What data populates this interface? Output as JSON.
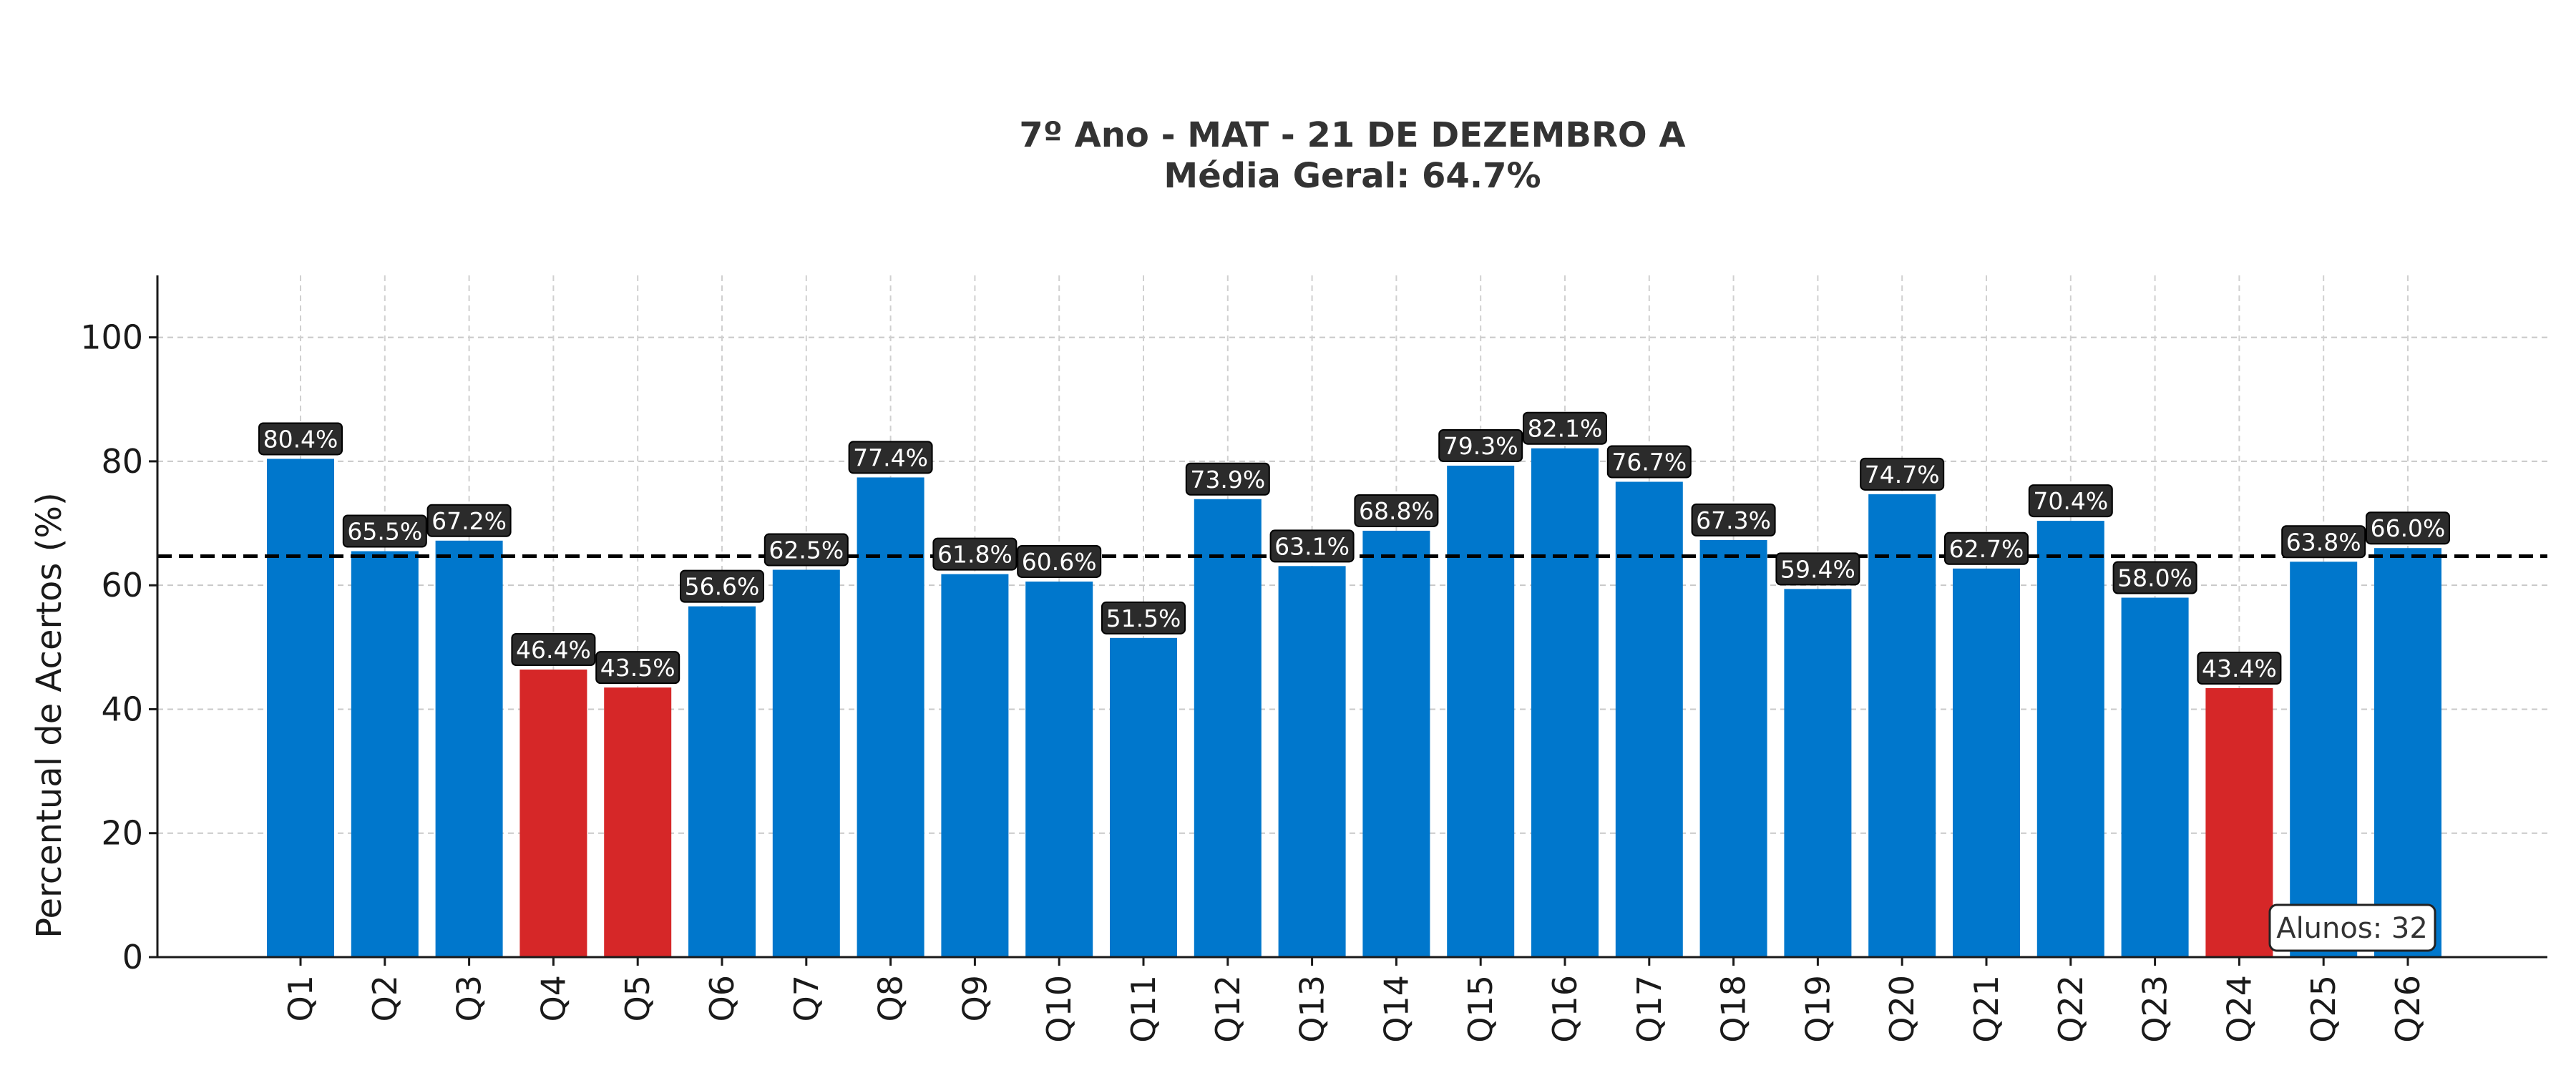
{
  "chart_data": {
    "type": "bar",
    "title": "7º Ano - MAT - 21 DE DEZEMBRO A",
    "subtitle": "Média Geral: 64.7%",
    "xlabel": "",
    "ylabel": "Percentual de Acertos (%)",
    "ylim": [
      0,
      110
    ],
    "yticks": [
      0,
      20,
      40,
      60,
      80,
      100
    ],
    "grid": true,
    "categories": [
      "Q1",
      "Q2",
      "Q3",
      "Q4",
      "Q5",
      "Q6",
      "Q7",
      "Q8",
      "Q9",
      "Q10",
      "Q11",
      "Q12",
      "Q13",
      "Q14",
      "Q15",
      "Q16",
      "Q17",
      "Q18",
      "Q19",
      "Q20",
      "Q21",
      "Q22",
      "Q23",
      "Q24",
      "Q25",
      "Q26"
    ],
    "values": [
      80.4,
      65.5,
      67.2,
      46.4,
      43.5,
      56.6,
      62.5,
      77.4,
      61.8,
      60.6,
      51.5,
      73.9,
      63.1,
      68.8,
      79.3,
      82.1,
      76.7,
      67.3,
      59.4,
      74.7,
      62.7,
      70.4,
      58.0,
      43.4,
      63.8,
      66.0
    ],
    "labels": [
      "80.4%",
      "65.5%",
      "67.2%",
      "46.4%",
      "43.5%",
      "56.6%",
      "62.5%",
      "77.4%",
      "61.8%",
      "60.6%",
      "51.5%",
      "73.9%",
      "63.1%",
      "68.8%",
      "79.3%",
      "82.1%",
      "76.7%",
      "67.3%",
      "59.4%",
      "74.7%",
      "62.7%",
      "70.4%",
      "58.0%",
      "43.4%",
      "63.8%",
      "66.0%"
    ],
    "mean_line": 64.7,
    "colors": {
      "above_threshold": "#0077cc",
      "below_threshold": "#d62728",
      "mean_line": "#000000",
      "label_bg": "#2b2b2b"
    },
    "highlight_below": 50,
    "annotation": "Alunos: 32"
  }
}
